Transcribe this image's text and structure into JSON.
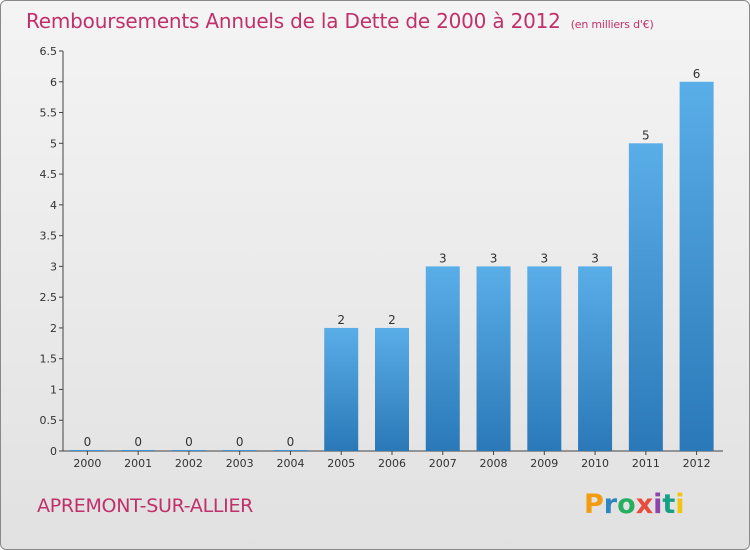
{
  "header": {
    "title": "Remboursements Annuels de la Dette de 2000 à 2012",
    "unit": "(en milliers d'€)"
  },
  "footer": {
    "commune": "APREMONT-SUR-ALLIER",
    "logo_letters": [
      "P",
      "r",
      "o",
      "x",
      "i",
      "t",
      "i"
    ],
    "logo_colors": [
      "#f39c12",
      "#2e86c1",
      "#27ae60",
      "#e74c3c",
      "#8e44ad",
      "#16a085",
      "#f1c40f"
    ]
  },
  "chart_data": {
    "type": "bar",
    "title": "Remboursements Annuels de la Dette de 2000 à 2012",
    "xlabel": "",
    "ylabel": "",
    "categories": [
      "2000",
      "2001",
      "2002",
      "2003",
      "2004",
      "2005",
      "2006",
      "2007",
      "2008",
      "2009",
      "2010",
      "2011",
      "2012"
    ],
    "values": [
      0,
      0,
      0,
      0,
      0,
      2,
      2,
      3,
      3,
      3,
      3,
      5,
      6
    ],
    "data_labels": [
      "0",
      "0",
      "0",
      "0",
      "0",
      "2",
      "2",
      "3",
      "3",
      "3",
      "3",
      "5",
      "6"
    ],
    "ylim": [
      0,
      6.5
    ],
    "yticks": [
      "0",
      "0.5",
      "1",
      "1.5",
      "2",
      "2.5",
      "3",
      "3.5",
      "4",
      "4.5",
      "5",
      "5.5",
      "6",
      "6.5"
    ],
    "grid": false,
    "legend": "none",
    "bar_color_top": "#5aaee8",
    "bar_color_bottom": "#2a78b8"
  }
}
